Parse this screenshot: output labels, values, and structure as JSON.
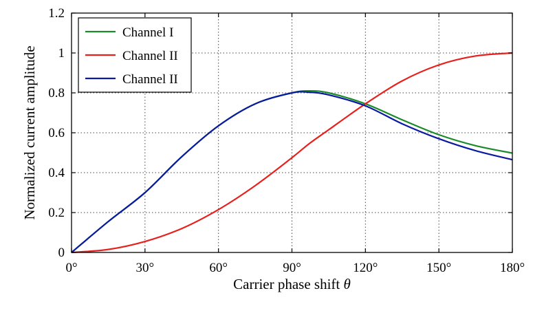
{
  "chart_data": {
    "type": "line",
    "title": "",
    "xlabel": "Carrier phase shift",
    "xlabel_symbol": "θ",
    "ylabel": "Normalized current amplitude",
    "xlim": [
      0,
      180
    ],
    "ylim": [
      0,
      1.2
    ],
    "x_ticks": [
      0,
      30,
      60,
      90,
      120,
      150,
      180
    ],
    "x_tick_labels": [
      "0°",
      "30°",
      "60°",
      "90°",
      "120°",
      "150°",
      "180°"
    ],
    "y_ticks": [
      0,
      0.2,
      0.4,
      0.6,
      0.8,
      1,
      1.2
    ],
    "y_tick_labels": [
      "0",
      "0.2",
      "0.4",
      "0.6",
      "0.8",
      "1",
      "1.2"
    ],
    "grid": true,
    "legend_position": "top-left",
    "x": [
      0,
      15,
      30,
      45,
      60,
      75,
      90,
      97,
      105,
      120,
      135,
      150,
      165,
      180
    ],
    "series": [
      {
        "name": "Channel I",
        "color": "#1a8a2a",
        "values": [
          0,
          0.155,
          0.3,
          0.48,
          0.635,
          0.745,
          0.8,
          0.81,
          0.8,
          0.745,
          0.665,
          0.59,
          0.535,
          0.498
        ]
      },
      {
        "name": "Channel II",
        "color": "#e8201c",
        "values": [
          0,
          0.015,
          0.055,
          0.12,
          0.215,
          0.335,
          0.475,
          0.545,
          0.615,
          0.745,
          0.86,
          0.94,
          0.985,
          1.0
        ]
      },
      {
        "name": "Channel II",
        "color": "#0a1aa0",
        "values": [
          0,
          0.155,
          0.3,
          0.48,
          0.635,
          0.745,
          0.8,
          0.803,
          0.79,
          0.735,
          0.645,
          0.57,
          0.51,
          0.465
        ]
      }
    ]
  }
}
